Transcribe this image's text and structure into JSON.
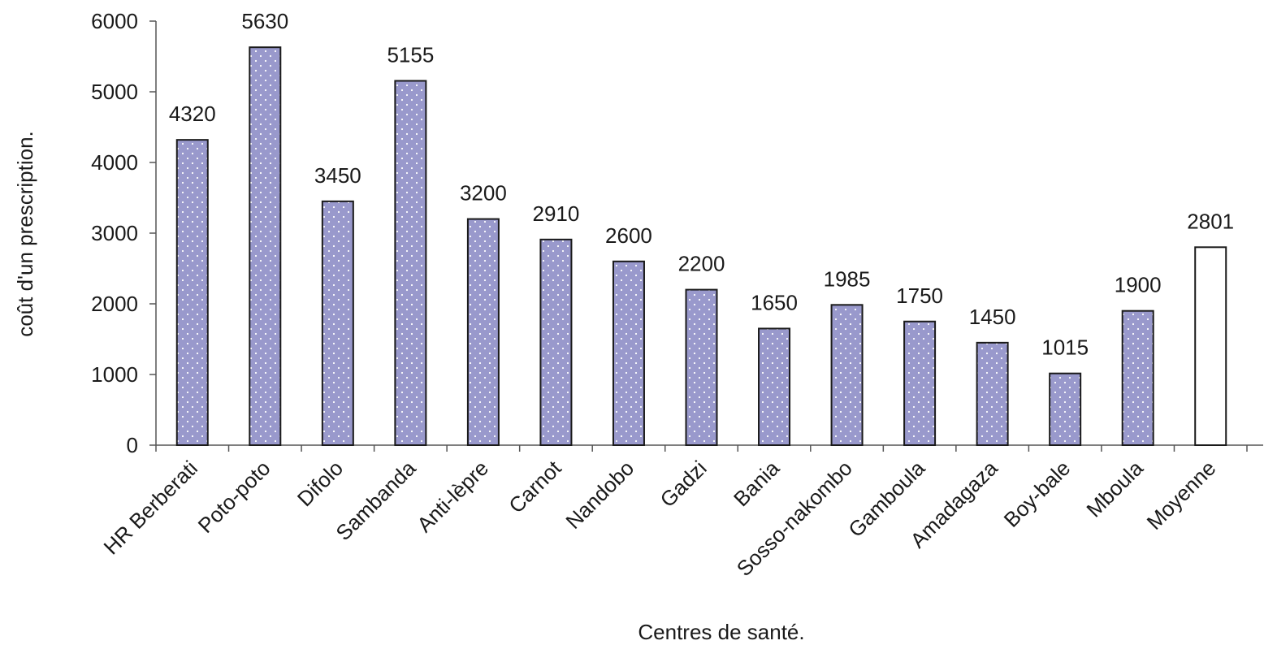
{
  "chart_data": {
    "type": "bar",
    "categories": [
      "HR Berberati",
      "Poto-poto",
      "Difolo",
      "Sambanda",
      "Anti-lèpre",
      "Carnot",
      "Nandobo",
      "Gadzi",
      "Bania",
      "Sosso-nakombo",
      "Gamboula",
      "Amadagaza",
      "Boy-bale",
      "Mboula",
      "Moyenne"
    ],
    "values": [
      4320,
      5630,
      3450,
      5155,
      3200,
      2910,
      2600,
      2200,
      1650,
      1985,
      1750,
      1450,
      1015,
      1900,
      2801
    ],
    "data_labels": [
      "4320",
      "5630",
      "3450",
      "5155",
      "3200",
      "2910",
      "2600",
      "2200",
      "1650",
      "1985",
      "1750",
      "1450",
      "1015",
      "1900",
      "2801"
    ],
    "highlight_index": 14,
    "xlabel": "Centres de santé.",
    "ylabel": "coût d'un prescription.",
    "ylim": [
      0,
      6000
    ],
    "yticks": [
      0,
      1000,
      2000,
      3000,
      4000,
      5000,
      6000
    ],
    "grid": false,
    "legend": "none",
    "colors": {
      "bar_fill": "#9999cc",
      "bar_dots": "#ffffff",
      "highlight_fill": "#ffffff",
      "bar_stroke": "#1a1a1a"
    }
  }
}
